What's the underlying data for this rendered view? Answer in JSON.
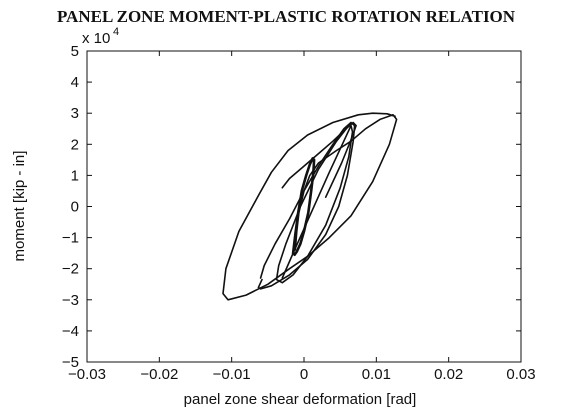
{
  "chart_data": {
    "type": "line",
    "title": "PANEL ZONE MOMENT-PLASTIC ROTATION RELATION",
    "xlabel": "panel zone shear deformation [rad]",
    "ylabel": "moment  [kip - in]",
    "y_multiplier_base": "x 10",
    "y_multiplier_exp": "4",
    "xlim": [
      -0.03,
      0.03
    ],
    "ylim": [
      -5,
      5
    ],
    "grid": false,
    "x_ticks": [
      -0.03,
      -0.02,
      -0.01,
      0,
      0.01,
      0.02,
      0.03
    ],
    "x_tick_labels": [
      "−0.03",
      "−0.02",
      "−0.01",
      "0",
      "0.01",
      "0.02",
      "0.03"
    ],
    "y_ticks": [
      5,
      4,
      3,
      2,
      1,
      0,
      -1,
      -2,
      -3,
      -4,
      -5
    ],
    "y_tick_labels": [
      "5",
      "4",
      "3",
      "2",
      "1",
      "0",
      "−1",
      "−2",
      "−3",
      "−4",
      "−5"
    ],
    "series": [
      {
        "x": [
          -0.0012,
          -0.001,
          -0.0007,
          0.0,
          0.0008,
          0.002,
          0.0045,
          0.0065,
          0.0085,
          0.0105,
          0.0123,
          0.0128,
          0.0118,
          0.0095,
          0.0065,
          0.0035,
          0.0005,
          -0.002,
          -0.005,
          -0.008,
          -0.0105,
          -0.0112,
          -0.0108,
          -0.009,
          -0.0062,
          -0.0045,
          -0.0022,
          0.0005,
          0.004,
          0.0075,
          0.0095,
          0.0115,
          0.0126
        ],
        "y": [
          -1.4,
          -0.8,
          -0.2,
          0.5,
          1.0,
          1.4,
          1.8,
          2.1,
          2.5,
          2.8,
          2.95,
          2.8,
          2.0,
          0.8,
          -0.3,
          -1.0,
          -1.6,
          -2.0,
          -2.5,
          -2.85,
          -3.0,
          -2.8,
          -2.0,
          -0.8,
          0.4,
          1.1,
          1.8,
          2.3,
          2.7,
          2.95,
          3.0,
          2.98,
          2.9
        ]
      },
      {
        "x": [
          -0.006,
          -0.0055,
          -0.004,
          -0.002,
          0.0,
          0.002,
          0.004,
          0.0055,
          0.0065,
          0.007,
          0.0068,
          0.006,
          0.0048,
          0.003,
          0.0005,
          -0.002,
          -0.0045,
          -0.006,
          -0.0063,
          -0.0058
        ],
        "y": [
          -2.3,
          -1.9,
          -1.2,
          -0.4,
          0.5,
          1.3,
          2.0,
          2.5,
          2.7,
          2.6,
          2.1,
          1.0,
          0.0,
          -0.9,
          -1.7,
          -2.2,
          -2.55,
          -2.65,
          -2.6,
          -2.35
        ]
      },
      {
        "x": [
          -0.003,
          -0.0015,
          0.001,
          0.0035,
          0.0055,
          0.0065,
          0.0067,
          0.0062,
          0.005,
          0.003,
          0.0005,
          -0.0015,
          -0.003,
          -0.0038,
          -0.0035,
          -0.0025,
          -0.0005,
          0.002,
          0.0045,
          0.006
        ],
        "y": [
          -2.3,
          -1.5,
          -0.2,
          1.1,
          2.1,
          2.6,
          2.4,
          1.6,
          0.6,
          -0.6,
          -1.6,
          -2.2,
          -2.45,
          -2.35,
          -1.9,
          -1.2,
          0.0,
          1.2,
          2.1,
          2.55
        ]
      },
      {
        "x": [
          -0.0015,
          -0.0012,
          -0.0008,
          -0.0003,
          0.0003,
          0.0008,
          0.0012,
          0.0014,
          0.0013,
          0.001,
          0.0006,
          0.0,
          -0.0005,
          -0.001,
          -0.0013,
          -0.0015
        ],
        "y": [
          -1.5,
          -0.9,
          -0.2,
          0.5,
          1.0,
          1.35,
          1.55,
          1.5,
          1.1,
          0.5,
          -0.2,
          -0.8,
          -1.2,
          -1.45,
          -1.55,
          -1.5
        ]
      },
      {
        "x": [
          -0.003,
          -0.002,
          0.0,
          0.002,
          0.004,
          0.0058,
          0.0068,
          0.0072,
          0.0066,
          0.0052,
          0.003
        ],
        "y": [
          0.6,
          0.9,
          1.3,
          1.7,
          2.1,
          2.5,
          2.7,
          2.6,
          2.2,
          1.4,
          0.3
        ]
      }
    ]
  }
}
